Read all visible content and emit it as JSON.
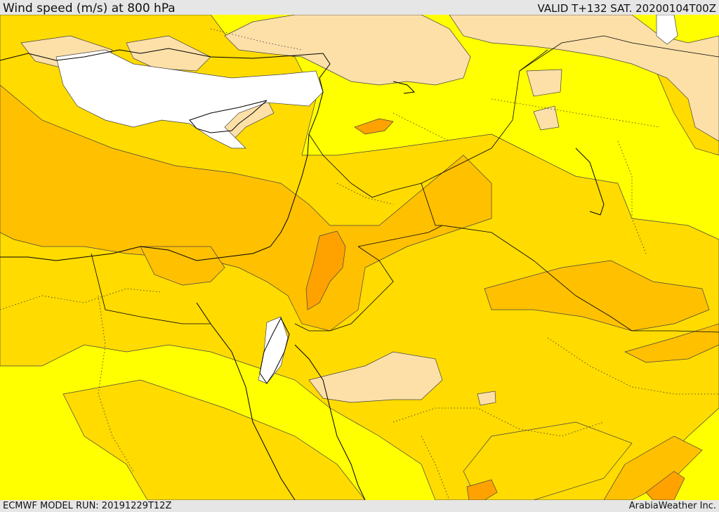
{
  "header": {
    "title": "Wind speed (m/s) at 800 hPa",
    "valid_time": "VALID T+132 SAT. 20200104T00Z"
  },
  "footer": {
    "model_run": "ECMWF MODEL RUN: 20191229T12Z",
    "credit": "ArabiaWeather Inc."
  },
  "palette": {
    "calm_white": "#ffffff",
    "light_peach": "#fde0a8",
    "bright_yellow": "#ffff00",
    "gold": "#ffdb00",
    "amber": "#ffc000",
    "orange": "#ffa200",
    "border_line": "#000000"
  }
}
